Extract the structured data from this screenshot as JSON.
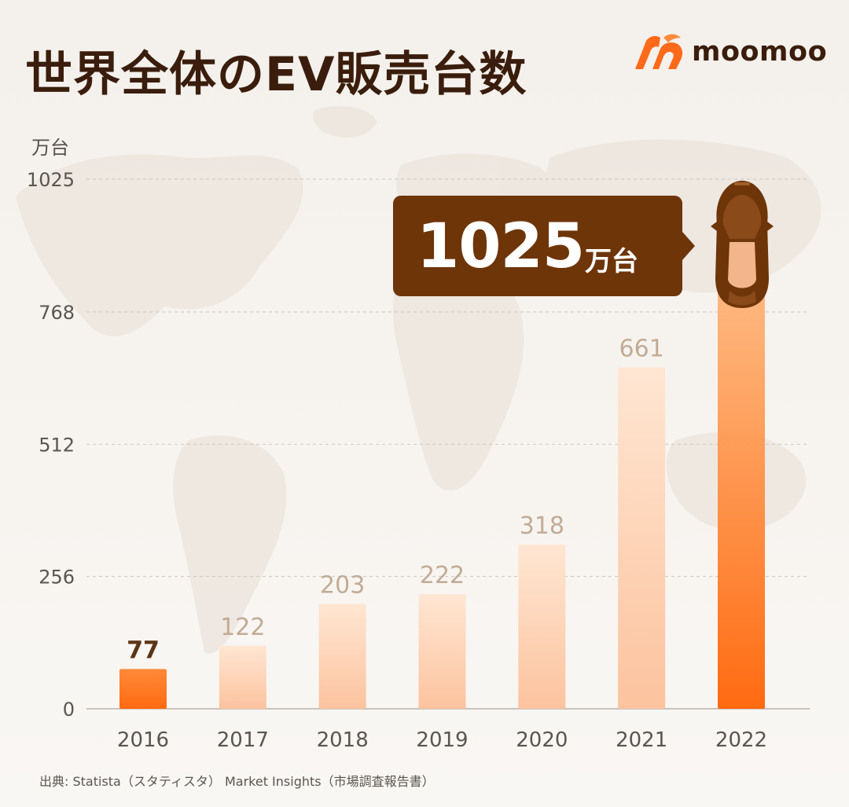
{
  "title": "世界全体のEV販売台数",
  "brand": {
    "name": "moomoo",
    "color": "#ff6a1a"
  },
  "callout": {
    "value": "1025",
    "unit": "万台"
  },
  "source": "出典: Statista（スタティスタ） Market Insights（市場調査報告書）",
  "icons": [
    "moomoo-logo-icon",
    "car-icon",
    "world-map-background"
  ],
  "colors": {
    "title": "#3a1d0c",
    "callout_bg": "#6e3509",
    "bar_highlight_top": "#ffa060",
    "bar_highlight_bottom": "#ff6a10",
    "bar_light_top": "#ffe2cc",
    "bar_light_bottom": "#fcc39e",
    "value_label_light": "#c2ab95",
    "value_label_first": "#5a3516"
  },
  "chart_data": {
    "type": "bar",
    "ylabel": "万台",
    "categories": [
      "2016",
      "2017",
      "2018",
      "2019",
      "2020",
      "2021",
      "2022"
    ],
    "values": [
      77,
      122,
      203,
      222,
      318,
      661,
      1025
    ],
    "value_labels": [
      "77",
      "122",
      "203",
      "222",
      "318",
      "661",
      ""
    ],
    "yticks": [
      0,
      256,
      512,
      768,
      1025
    ],
    "ytick_labels": [
      "0",
      "256",
      "512",
      "768",
      "1025"
    ],
    "ylim": [
      0,
      1025
    ],
    "grid": true,
    "highlight": [
      "2016",
      "2022"
    ]
  }
}
